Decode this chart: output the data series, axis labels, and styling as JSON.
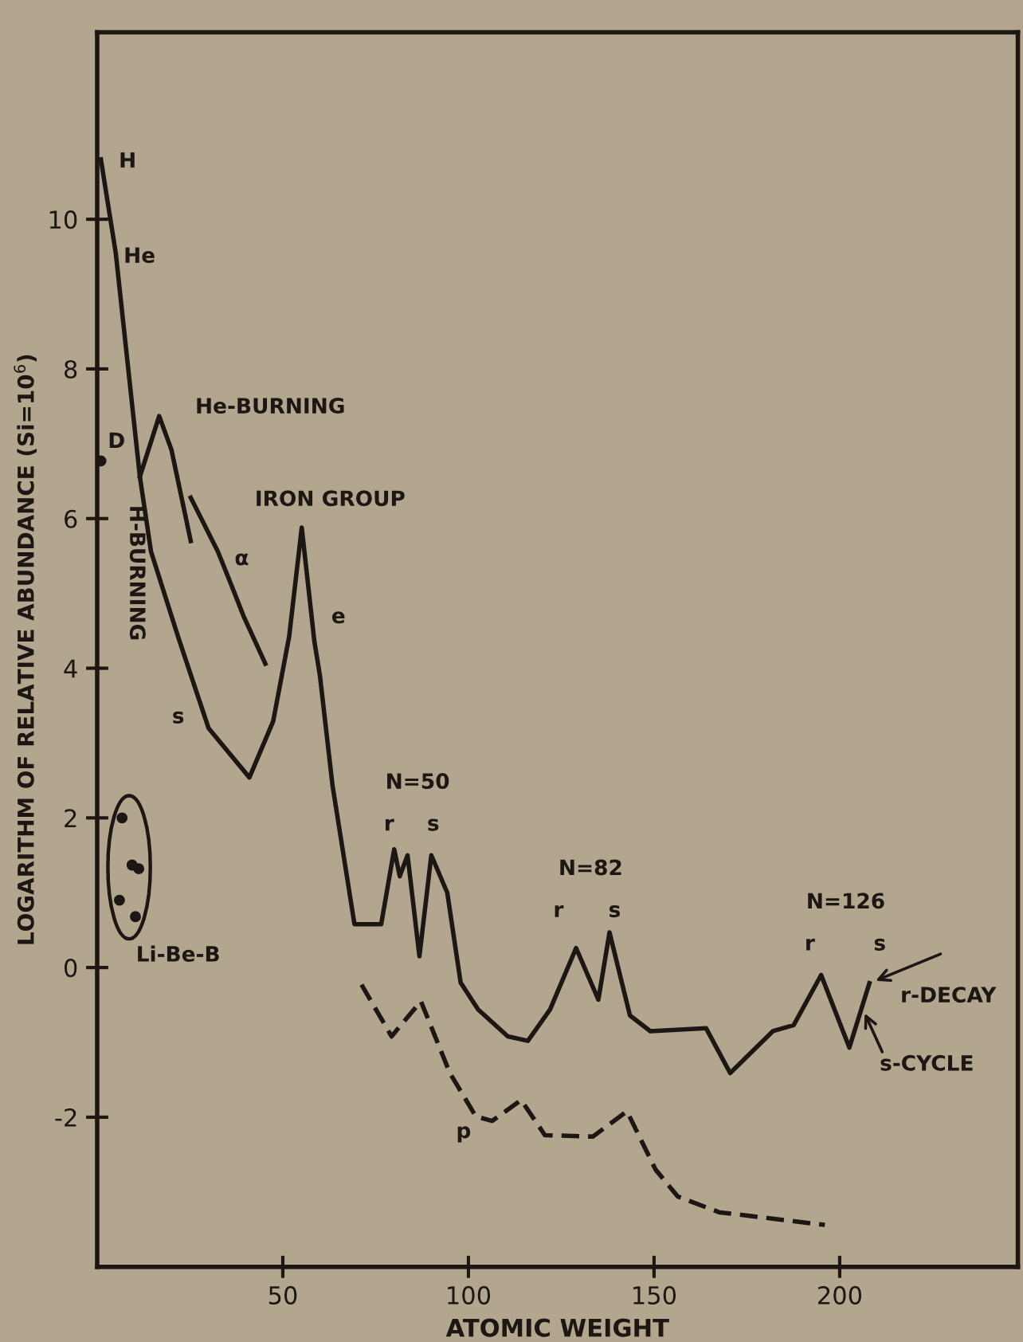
{
  "chart_data": {
    "type": "line",
    "xlabel": "ATOMIC WEIGHT",
    "ylabel": "LOGARITHM OF RELATIVE ABUNDANCE (Si=10$^{6}$)",
    "xlim": [
      0,
      248
    ],
    "ylim": [
      -4,
      12.5
    ],
    "xticks": [
      50,
      100,
      150,
      200
    ],
    "yticks": [
      -2,
      0,
      2,
      4,
      6,
      8,
      10
    ],
    "grid": false,
    "legend": false,
    "series": [
      {
        "line_style": "solid",
        "color": "#1c1712",
        "x": [
          1,
          5,
          11.5,
          14.5,
          21.8,
          30,
          41,
          47.4,
          51.7,
          55.1,
          58.5,
          60,
          63.4,
          69.3,
          76.5,
          80,
          81.5,
          83.6,
          86.8,
          90,
          94.3,
          97.9,
          102.6,
          110.6,
          116,
          122,
          129,
          135,
          138,
          143.5,
          149,
          164,
          170.5,
          182,
          187.6,
          195,
          202.6,
          208
        ],
        "values": [
          10.8,
          9.55,
          6.56,
          5.56,
          4.42,
          3.2,
          2.54,
          3.29,
          4.42,
          5.88,
          4.36,
          3.9,
          2.43,
          0.58,
          0.58,
          1.58,
          1.22,
          1.5,
          0.15,
          1.5,
          1.0,
          -0.2,
          -0.56,
          -0.92,
          -0.98,
          -0.56,
          0.26,
          -0.43,
          0.47,
          -0.64,
          -0.85,
          -0.81,
          -1.41,
          -0.85,
          -0.77,
          -0.1,
          -1.07,
          -0.21
        ]
      },
      {
        "line_style": "solid",
        "color": "#1c1712",
        "x": [
          11.5,
          16.7,
          20,
          25.2
        ],
        "values": [
          6.56,
          7.37,
          6.92,
          5.7
        ]
      },
      {
        "line_style": "solid",
        "color": "#1c1712",
        "x": [
          25.2,
          32.5,
          36,
          39.4,
          45.3
        ],
        "values": [
          6.28,
          5.56,
          5.13,
          4.7,
          4.06
        ]
      },
      {
        "line_style": "dashed",
        "color": "#1c1712",
        "x": [
          71.2,
          79.3,
          87.2,
          95,
          102,
          106.4,
          114.2,
          120.6,
          133.5,
          142.7,
          150.4,
          156.4,
          167.5,
          196
        ],
        "values": [
          -0.23,
          -0.92,
          -0.45,
          -1.41,
          -1.99,
          -2.05,
          -1.77,
          -2.24,
          -2.26,
          -1.92,
          -2.7,
          -3.06,
          -3.27,
          -3.44
        ]
      },
      {
        "type": "scatter",
        "marker": "circle",
        "color": "#1c1712",
        "x": [
          1,
          6.7,
          9.4,
          11.2,
          6,
          10.3
        ],
        "values": [
          6.77,
          2.0,
          1.37,
          1.32,
          0.9,
          0.68
        ]
      }
    ],
    "annotations": [
      "H",
      "He",
      "D",
      "He-BURNING",
      "H-BURNING",
      "α",
      "s",
      "IRON GROUP",
      "e",
      "N=50",
      "r",
      "s",
      "N=82",
      "r",
      "s",
      "N=126",
      "r",
      "s",
      {
        "text": "r-DECAY",
        "x": 208,
        "y": -0.21
      },
      {
        "text": "s-CYCLE",
        "x": 206,
        "y": -0.53
      },
      "Li-Be-B",
      "p"
    ]
  }
}
